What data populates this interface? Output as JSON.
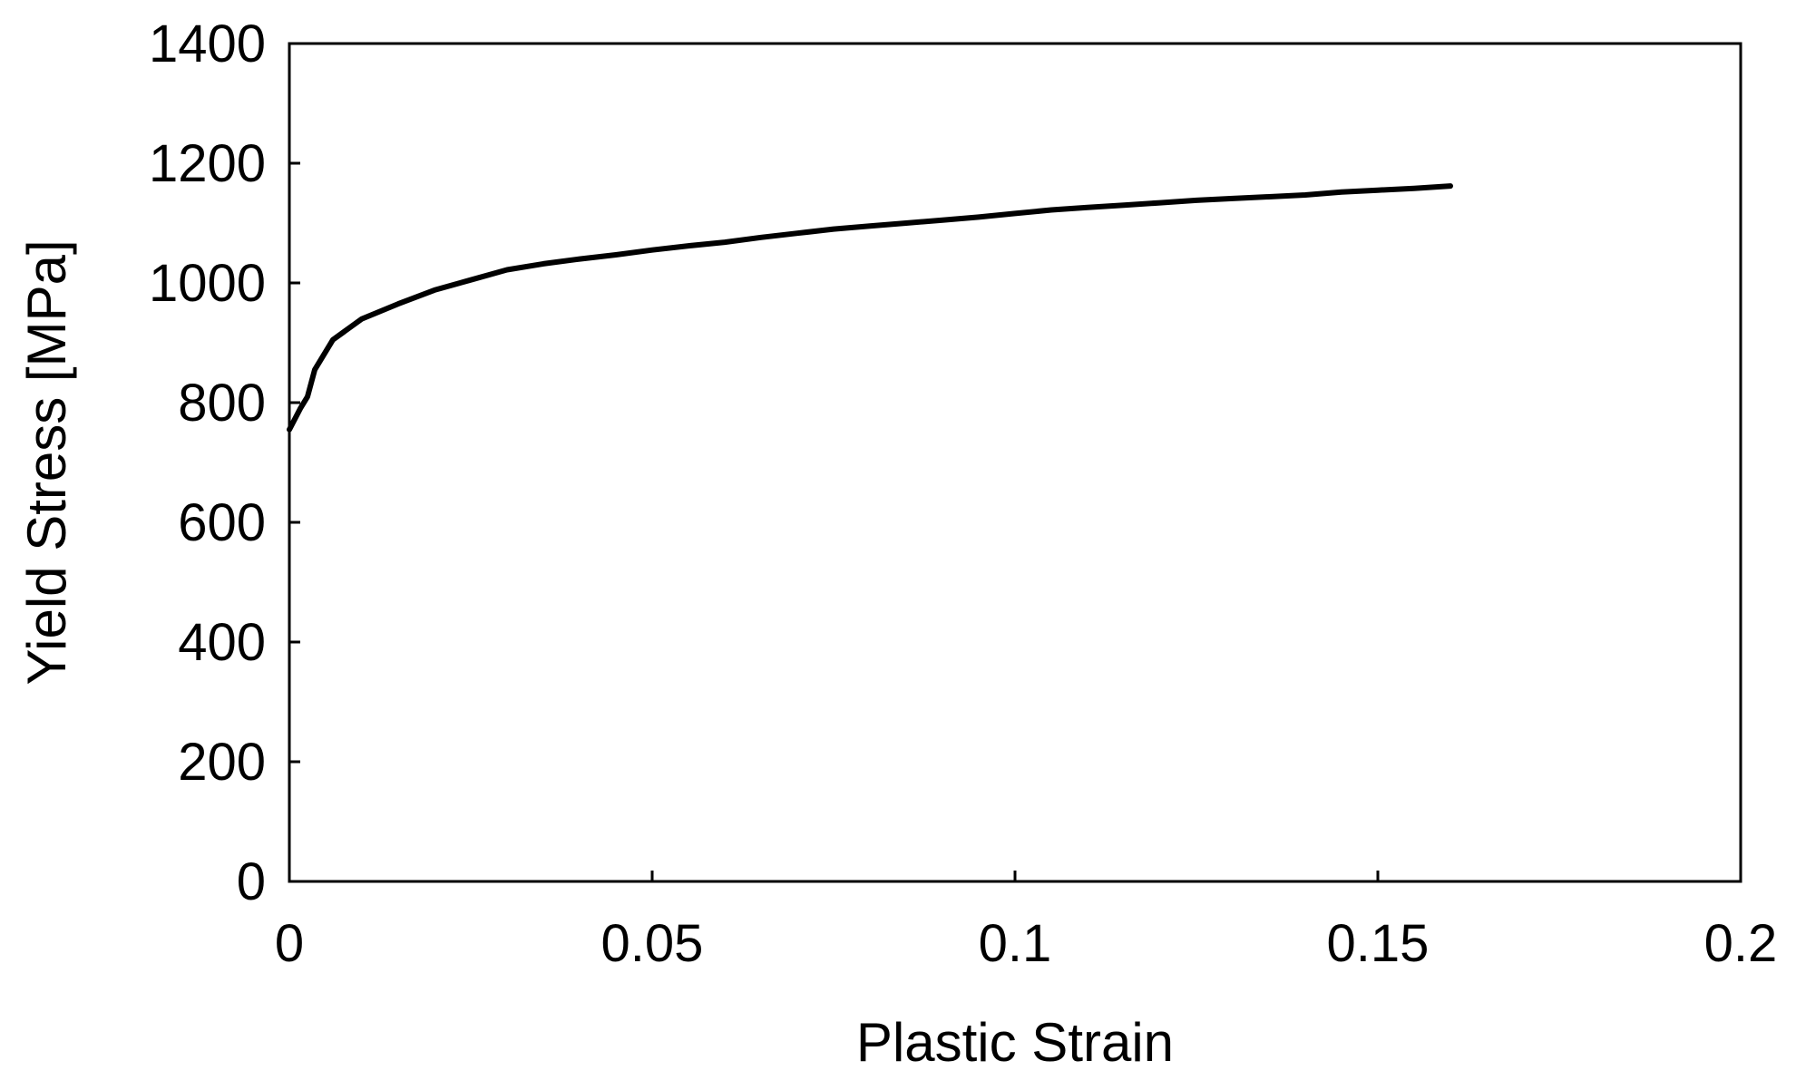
{
  "chart_data": {
    "type": "line",
    "title": "",
    "xlabel": "Plastic Strain",
    "ylabel": "Yield Stress [MPa]",
    "xlim": [
      0,
      0.2
    ],
    "ylim": [
      0,
      1400
    ],
    "xticks": [
      0,
      0.05,
      0.1,
      0.15,
      0.2
    ],
    "xtick_labels": [
      "0",
      "0.05",
      "0.1",
      "0.15",
      "0.2"
    ],
    "yticks": [
      0,
      200,
      400,
      600,
      800,
      1000,
      1200,
      1400
    ],
    "ytick_labels": [
      "0",
      "200",
      "400",
      "600",
      "800",
      "1000",
      "1200",
      "1400"
    ],
    "grid": false,
    "legend": "none",
    "series": [
      {
        "color": "#000000",
        "x": [
          0,
          0.0015,
          0.0025,
          0.0035,
          0.006,
          0.01,
          0.015,
          0.02,
          0.025,
          0.03,
          0.035,
          0.04,
          0.045,
          0.05,
          0.055,
          0.06,
          0.065,
          0.07,
          0.075,
          0.08,
          0.085,
          0.09,
          0.095,
          0.1,
          0.105,
          0.11,
          0.115,
          0.12,
          0.125,
          0.13,
          0.135,
          0.14,
          0.145,
          0.15,
          0.155,
          0.16
        ],
        "y": [
          755,
          790,
          810,
          855,
          905,
          940,
          965,
          988,
          1005,
          1022,
          1032,
          1040,
          1047,
          1055,
          1062,
          1068,
          1076,
          1083,
          1090,
          1095,
          1100,
          1105,
          1110,
          1116,
          1122,
          1126,
          1130,
          1134,
          1138,
          1141,
          1144,
          1147,
          1152,
          1155,
          1158,
          1162
        ]
      }
    ]
  }
}
